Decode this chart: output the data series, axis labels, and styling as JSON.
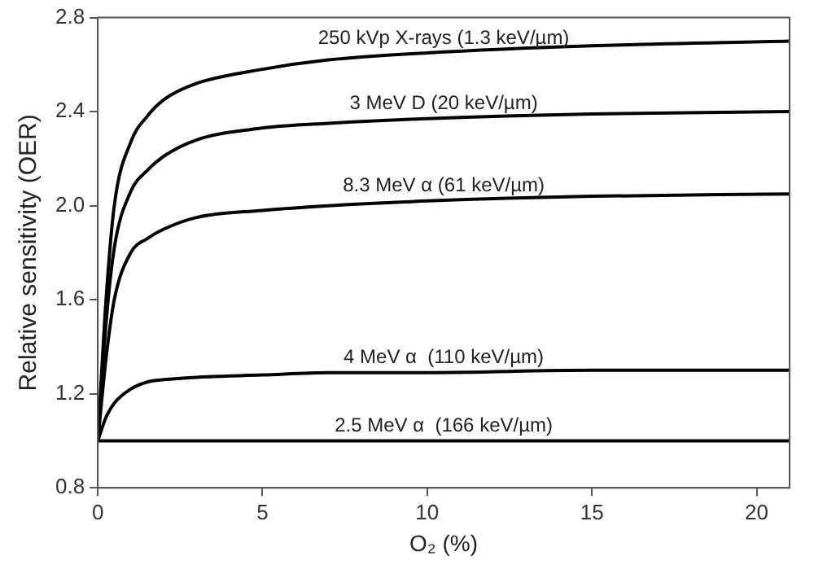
{
  "chart_data": {
    "type": "line",
    "xlabel": "O₂ (%)",
    "ylabel": "Relative sensitivity (OER)",
    "x": [
      0,
      0.25,
      0.5,
      1,
      1.5,
      2,
      3,
      5,
      7,
      10,
      15,
      21
    ],
    "series": [
      {
        "name": "250 kVp X-rays (1.3 keV/µm)",
        "color": "#000000",
        "values": [
          1,
          1.6,
          2.0,
          2.27,
          2.38,
          2.45,
          2.52,
          2.58,
          2.62,
          2.65,
          2.68,
          2.7
        ]
      },
      {
        "name": "3 MeV D (20 keV/µm)",
        "color": "#000000",
        "values": [
          1,
          1.5,
          1.82,
          2.06,
          2.15,
          2.21,
          2.28,
          2.33,
          2.35,
          2.37,
          2.39,
          2.4
        ]
      },
      {
        "name": "8.3 MeV α (61 keV/µm)",
        "color": "#000000",
        "values": [
          1,
          1.35,
          1.6,
          1.8,
          1.86,
          1.9,
          1.95,
          1.98,
          2.0,
          2.02,
          2.04,
          2.05
        ]
      },
      {
        "name": "4 MeV α  (110 keV/µm)",
        "color": "#000000",
        "values": [
          1,
          1.1,
          1.16,
          1.22,
          1.25,
          1.26,
          1.27,
          1.28,
          1.29,
          1.29,
          1.3,
          1.3
        ]
      },
      {
        "name": "2.5 MeV α  (166 keV/µm)",
        "color": "#000000",
        "values": [
          1,
          1,
          1,
          1,
          1,
          1,
          1,
          1,
          1,
          1,
          1,
          1
        ]
      }
    ],
    "xlim": [
      0,
      21
    ],
    "xticks": [
      0,
      5,
      10,
      15,
      20
    ],
    "ylim": [
      0.8,
      2.8
    ],
    "yticks": [
      0.8,
      1.2,
      1.6,
      {
        "value": 2,
        "label": "2.0"
      },
      2.4,
      2.8
    ],
    "grid": false,
    "legend": false,
    "marker": "none",
    "line_style": "solid"
  }
}
